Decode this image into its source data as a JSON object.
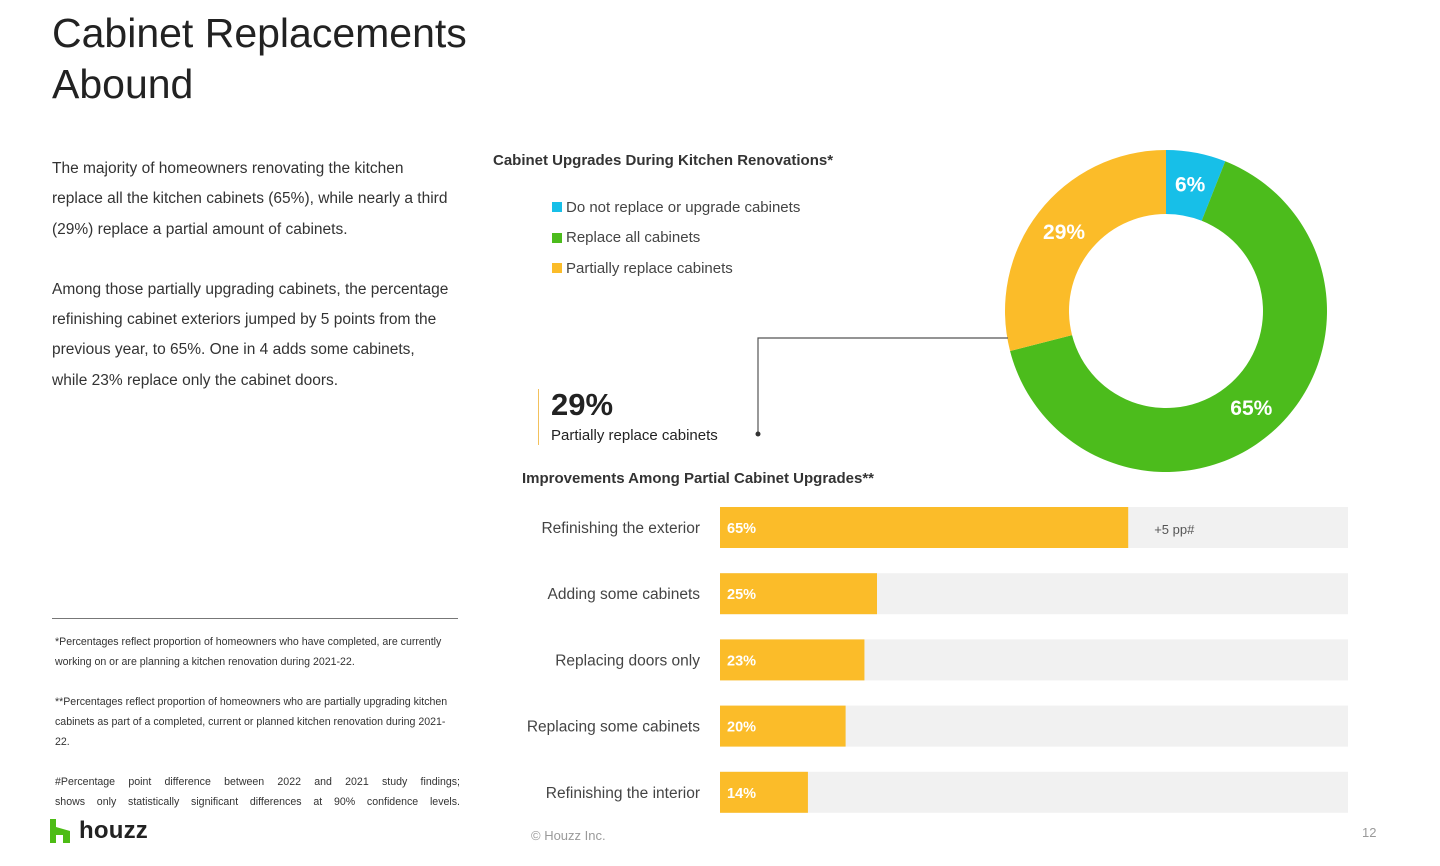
{
  "page": {
    "title_line1": "Cabinet Replacements",
    "title_line2": "Abound",
    "intro_p1": "The majority of homeowners renovating the kitchen replace all the kitchen cabinets (65%), while nearly a third (29%) replace a partial amount of cabinets.",
    "intro_p2": "Among those partially upgrading cabinets, the percentage refinishing cabinet exteriors jumped by 5 points from the previous year, to 65%. One in 4 adds some cabinets, while 23% replace only the cabinet doors.",
    "footnote_1": "*Percentages reflect proportion of homeowners who have completed, are currently working on or are planning a kitchen renovation during 2021-22.",
    "footnote_2": "**Percentages reflect proportion of homeowners who are partially upgrading kitchen cabinets as part of a completed, current or planned kitchen renovation during 2021-22.",
    "footnote_3a": "#Percentage point difference between 2022 and 2021 study findings;",
    "footnote_3b": "shows only statistically significant differences at 90% confidence levels.",
    "logo_text": "houzz",
    "copyright": "© Houzz Inc.",
    "page_number": "12"
  },
  "colors": {
    "blue": "#17bfe8",
    "green": "#4cbc1c",
    "yellow": "#fbbc29",
    "track": "#f1f1f1",
    "logo_green": "#4dbc15"
  },
  "callout": {
    "value": "29%",
    "label": "Partially replace cabinets"
  },
  "chart_data": [
    {
      "type": "pie",
      "title": "Cabinet Upgrades During Kitchen Renovations*",
      "legend_position": "left",
      "categories": [
        "Do not replace or upgrade cabinets",
        "Replace all cabinets",
        "Partially replace cabinets"
      ],
      "values": [
        6,
        65,
        29
      ],
      "labels": [
        "6%",
        "65%",
        "29%"
      ],
      "colors": [
        "#17bfe8",
        "#4cbc1c",
        "#fbbc29"
      ],
      "donut": true
    },
    {
      "type": "bar",
      "orientation": "horizontal",
      "title": "Improvements Among Partial Cabinet Upgrades**",
      "categories": [
        "Refinishing the exterior",
        "Adding some cabinets",
        "Replacing doors only",
        "Replacing some cabinets",
        "Refinishing the interior"
      ],
      "values": [
        65,
        25,
        23,
        20,
        14
      ],
      "labels": [
        "65%",
        "25%",
        "23%",
        "20%",
        "14%"
      ],
      "xlim": [
        0,
        100
      ],
      "annotations": [
        {
          "category": "Refinishing the exterior",
          "text": "+5 pp#"
        }
      ]
    }
  ]
}
